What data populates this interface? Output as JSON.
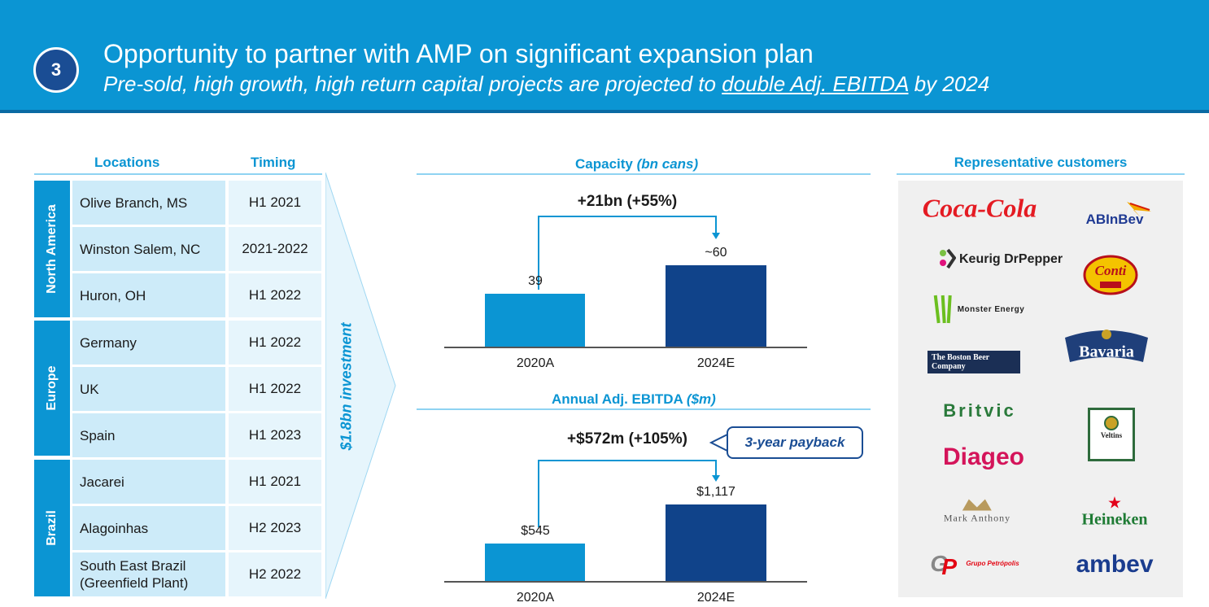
{
  "header": {
    "step_number": "3",
    "title": "Opportunity to partner with AMP on significant expansion plan",
    "subtitle_pre": "Pre-sold, high growth, high return capital projects are projected to ",
    "subtitle_underlined": "double Adj. EBITDA",
    "subtitle_post": " by 2024"
  },
  "locations_table": {
    "col_locations": "Locations",
    "col_timing": "Timing",
    "regions": [
      {
        "name": "North America",
        "rows": [
          {
            "location": "Olive Branch, MS",
            "timing": "H1 2021"
          },
          {
            "location": "Winston Salem, NC",
            "timing": "2021-2022"
          },
          {
            "location": "Huron, OH",
            "timing": "H1 2022"
          }
        ]
      },
      {
        "name": "Europe",
        "rows": [
          {
            "location": "Germany",
            "timing": "H1 2022"
          },
          {
            "location": "UK",
            "timing": "H1 2022"
          },
          {
            "location": "Spain",
            "timing": "H1 2023"
          }
        ]
      },
      {
        "name": "Brazil",
        "rows": [
          {
            "location": "Jacarei",
            "timing": "H1 2021"
          },
          {
            "location": "Alagoinhas",
            "timing": "H2 2023"
          },
          {
            "location": "South East Brazil (Greenfield Plant)",
            "timing": "H2 2022"
          }
        ]
      }
    ]
  },
  "investment_label": "$1.8bn investment",
  "chart_data": [
    {
      "type": "bar",
      "title": "Capacity",
      "title_unit": "(bn cans)",
      "categories": [
        "2020A",
        "2024E"
      ],
      "values": [
        39,
        60
      ],
      "value_labels": [
        "39",
        "~60"
      ],
      "growth_label": "+21bn (+55%)",
      "ylim": [
        0,
        60
      ]
    },
    {
      "type": "bar",
      "title": "Annual Adj. EBITDA",
      "title_unit": "($m)",
      "categories": [
        "2020A",
        "2024E"
      ],
      "values": [
        545,
        1117
      ],
      "value_labels": [
        "$545",
        "$1,117"
      ],
      "growth_label": "+$572m (+105%)",
      "callout": "3-year payback",
      "ylim": [
        0,
        1117
      ]
    }
  ],
  "customers": {
    "title": "Representative customers",
    "logos": [
      "Coca-Cola",
      "ABInBev",
      "Keurig DrPepper",
      "Conti",
      "Monster Energy",
      "The Boston Beer Company",
      "Bavaria",
      "Britvic",
      "Veltins",
      "Diageo",
      "Mark Anthony",
      "Heineken",
      "Grupo Petrópolis",
      "ambev"
    ]
  },
  "colors": {
    "header_blue": "#0b95d3",
    "dark_navy": "#1a4d94",
    "bar_light": "#0b95d3",
    "bar_dark": "#10438a"
  }
}
